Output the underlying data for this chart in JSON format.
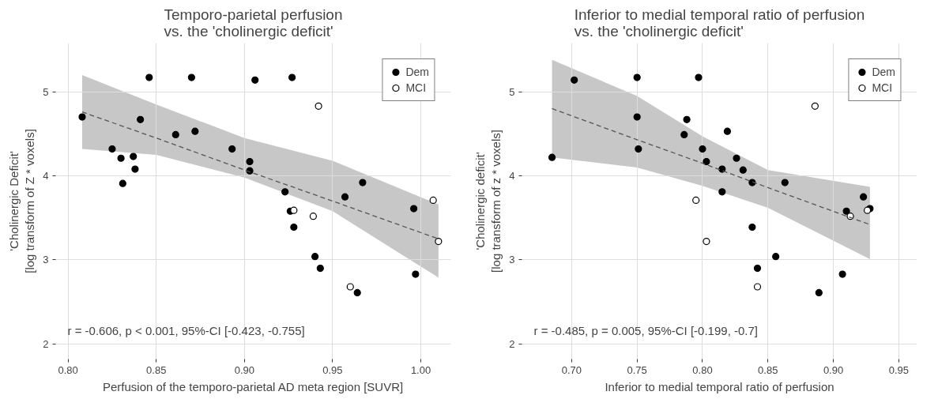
{
  "chart_data": [
    {
      "type": "scatter",
      "title": "Temporo-parietal perfusion\nvs. the 'cholinergic deficit'",
      "xlabel": "Perfusion of the temporo-parietal AD meta region [SUVR]",
      "ylabel": "'Cholinergic Deficit'\n[log transform of Z * voxels]",
      "annotations": [
        "r = -0.606, p < 0.001, 95%-CI [-0.423, -0.755]"
      ],
      "xlim": [
        0.793,
        1.017
      ],
      "ylim": [
        1.82,
        5.58
      ],
      "xticks": [
        {
          "value": 0.8,
          "label": "0.80"
        },
        {
          "value": 0.85,
          "label": "0.85"
        },
        {
          "value": 0.9,
          "label": "0.90"
        },
        {
          "value": 0.95,
          "label": "0.95"
        },
        {
          "value": 1.0,
          "label": "1.00"
        }
      ],
      "yticks": [
        2,
        3,
        4,
        5
      ],
      "grid": true,
      "legend": "top right",
      "marker": "circle",
      "series": [
        {
          "name": "Dem",
          "color": "#000000",
          "x": [
            0.808,
            0.846,
            0.87,
            0.906,
            0.927,
            0.841,
            0.861,
            0.872,
            0.825,
            0.83,
            0.837,
            0.838,
            0.831,
            0.893,
            0.903,
            0.903,
            0.923,
            0.967,
            0.957,
            0.996,
            0.926,
            0.928,
            0.94,
            0.943,
            0.997,
            0.964
          ],
          "values": [
            4.7,
            5.17,
            5.17,
            5.14,
            5.17,
            4.67,
            4.49,
            4.53,
            4.32,
            4.21,
            4.23,
            4.08,
            3.91,
            4.32,
            4.17,
            4.06,
            3.81,
            3.92,
            3.75,
            3.61,
            3.58,
            3.39,
            3.04,
            2.9,
            2.83,
            2.61
          ]
        },
        {
          "name": "MCI",
          "color": "#ffffff",
          "x": [
            0.942,
            0.928,
            0.939,
            1.007,
            1.01,
            0.96
          ],
          "values": [
            4.83,
            3.59,
            3.52,
            3.71,
            3.22,
            2.68
          ]
        },
        {
          "type": "line",
          "color": "#555555",
          "line_style": "dashed",
          "marker": "none",
          "x": [
            0.808,
            0.85,
            0.9,
            0.95,
            1.01
          ],
          "values": [
            4.76,
            4.45,
            4.07,
            3.7,
            3.25
          ],
          "lower": [
            4.32,
            4.25,
            3.98,
            3.58,
            2.79
          ],
          "upper": [
            5.2,
            4.85,
            4.45,
            4.18,
            3.66
          ]
        }
      ]
    },
    {
      "type": "scatter",
      "title": "Inferior to medial temporal ratio of perfusion\nvs. the 'cholinergic deficit'",
      "xlabel": "Inferior to medial temporal ratio of perfusion",
      "ylabel": "'Cholinergic deficit'\n[log transform of z * voxels]",
      "annotations": [
        "r = -0.485, p = 0.005, 95%-CI [-0.199, -0.7]"
      ],
      "xlim": [
        0.662,
        0.964
      ],
      "ylim": [
        1.82,
        5.58
      ],
      "xticks": [
        {
          "value": 0.7,
          "label": "0.70"
        },
        {
          "value": 0.75,
          "label": "0.75"
        },
        {
          "value": 0.8,
          "label": "0.80"
        },
        {
          "value": 0.85,
          "label": "0.85"
        },
        {
          "value": 0.9,
          "label": "0.90"
        },
        {
          "value": 0.95,
          "label": "0.95"
        }
      ],
      "yticks": [
        2,
        3,
        4,
        5
      ],
      "grid": true,
      "legend": "top right",
      "marker": "circle",
      "series": [
        {
          "name": "Dem",
          "color": "#000000",
          "x": [
            0.685,
            0.702,
            0.75,
            0.75,
            0.751,
            0.797,
            0.788,
            0.786,
            0.819,
            0.8,
            0.803,
            0.815,
            0.815,
            0.826,
            0.831,
            0.838,
            0.863,
            0.923,
            0.91,
            0.928,
            0.838,
            0.856,
            0.842,
            0.907,
            0.889
          ],
          "values": [
            4.22,
            5.14,
            5.17,
            4.7,
            4.32,
            5.17,
            4.67,
            4.49,
            4.53,
            4.32,
            4.17,
            4.08,
            3.81,
            4.21,
            4.07,
            3.92,
            3.92,
            3.75,
            3.58,
            3.61,
            3.39,
            3.04,
            2.9,
            2.83,
            2.61
          ]
        },
        {
          "name": "MCI",
          "color": "#ffffff",
          "x": [
            0.795,
            0.803,
            0.886,
            0.913,
            0.926,
            0.842
          ],
          "values": [
            3.71,
            3.22,
            4.83,
            3.52,
            3.59,
            2.68
          ]
        },
        {
          "type": "line",
          "color": "#555555",
          "line_style": "dashed",
          "marker": "none",
          "x": [
            0.685,
            0.75,
            0.8,
            0.85,
            0.928
          ],
          "values": [
            4.8,
            4.43,
            4.15,
            3.86,
            3.42
          ],
          "lower": [
            4.22,
            4.1,
            3.88,
            3.62,
            3.01
          ],
          "upper": [
            5.38,
            4.95,
            4.47,
            4.07,
            3.87
          ]
        }
      ]
    }
  ]
}
